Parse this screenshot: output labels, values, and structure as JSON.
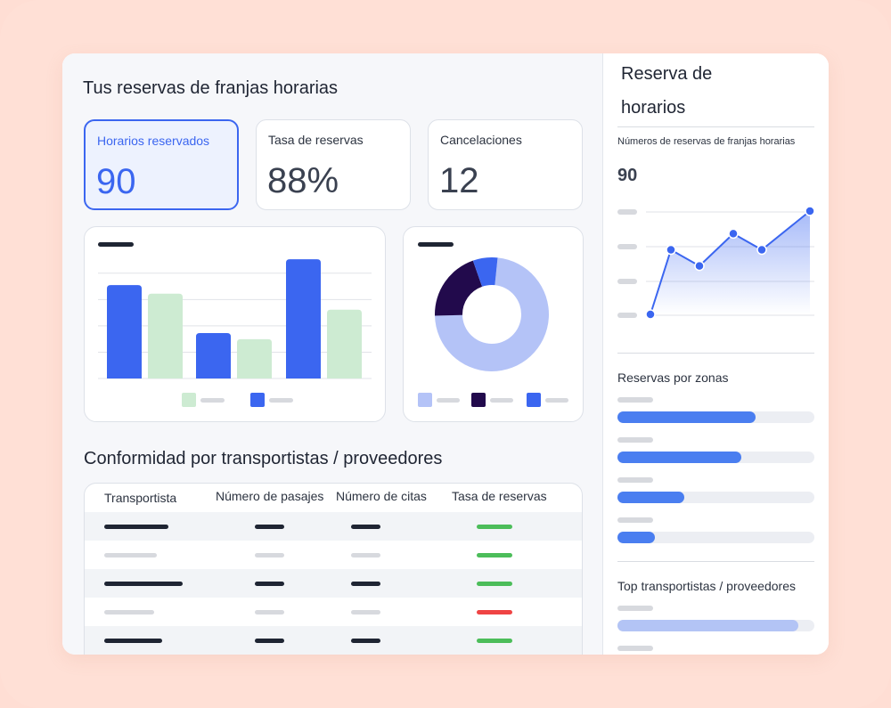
{
  "main": {
    "title": "Tus reservas de franjas horarias",
    "kpis": [
      {
        "label": "Horarios reservados",
        "value": "90"
      },
      {
        "label": "Tasa de reservas",
        "value": "88%"
      },
      {
        "label": "Cancelaciones",
        "value": "12"
      }
    ],
    "bar_chart": {
      "type": "bar",
      "categories": [
        "",
        "",
        ""
      ],
      "series": [
        {
          "values": [
            0.76,
            0.37,
            0.97
          ],
          "color": "#3b66f0"
        },
        {
          "values": [
            0.69,
            0.32,
            0.56
          ],
          "color": "#cdebd2"
        }
      ],
      "ylim": [
        0,
        1
      ]
    },
    "donut_chart": {
      "type": "pie",
      "slices": [
        0.73,
        0.2,
        0.07
      ],
      "colors": [
        "#b4c3f7",
        "#220a4c",
        "#3b66f0"
      ]
    },
    "table_title": "Conformidad por transportistas / proveedores",
    "table": {
      "headers": [
        "Transportista",
        "Número de pasajes",
        "Número de citas",
        "Tasa de reservas"
      ],
      "rows": [
        {
          "status_color": "#4cbd5a"
        },
        {
          "status_color": "#4cbd5a"
        },
        {
          "status_color": "#4cbd5a"
        },
        {
          "status_color": "#ef4444"
        },
        {
          "status_color": "#4cbd5a"
        }
      ]
    }
  },
  "side": {
    "title_line1": "Reserva de",
    "title_line2": "horarios",
    "chart_label": "Números de reservas de franjas horarias",
    "chart_value": "90",
    "chart_data": {
      "type": "line",
      "values": [
        0.0,
        0.6,
        0.45,
        0.75,
        0.6,
        0.96
      ],
      "ylim": [
        0,
        1
      ]
    },
    "zones_title": "Reservas por zonas",
    "zones": [
      0.7,
      0.63,
      0.34,
      0.19
    ],
    "top_title": "Top transportistas / proveedores",
    "top": [
      0.92
    ],
    "accent": "#3b66f0"
  }
}
